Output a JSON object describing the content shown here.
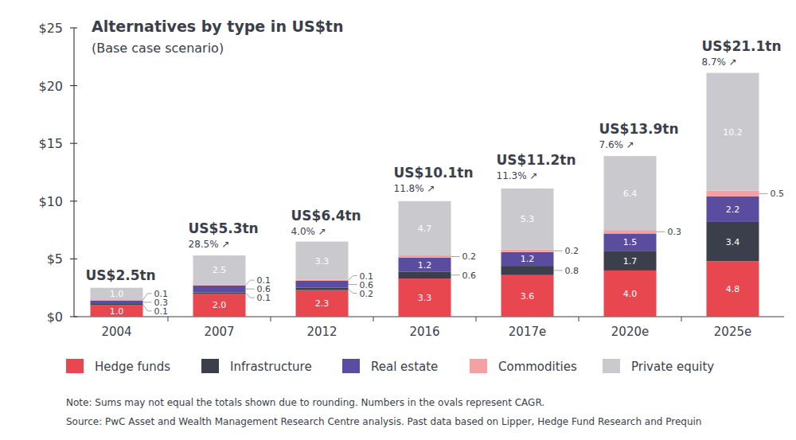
{
  "chart_data": {
    "type": "bar",
    "title": "Alternatives by type in US$tn",
    "subtitle": "(Base case scenario)",
    "stacked": true,
    "data_labels": true,
    "grid": false,
    "legend": "bottom",
    "categories": [
      "2004",
      "2007",
      "2012",
      "2016",
      "2017e",
      "2020e",
      "2025e"
    ],
    "series": [
      {
        "name": "Hedge funds",
        "color": "#e8474f",
        "values": [
          1.0,
          2.0,
          2.3,
          3.3,
          3.6,
          4.0,
          4.8
        ],
        "value_labels": [
          "1.0",
          "2.0",
          "2.3",
          "3.3",
          "3.6",
          "4.0",
          "4.8"
        ]
      },
      {
        "name": "Infrastructure",
        "color": "#3b3f4b",
        "values": [
          0.1,
          0.1,
          0.2,
          0.6,
          0.8,
          1.7,
          3.4
        ],
        "value_labels": [
          "0.1",
          "0.1",
          "0.2",
          "0.6",
          "0.8",
          "1.7",
          "3.4"
        ]
      },
      {
        "name": "Real estate",
        "color": "#5a4d9f",
        "values": [
          0.3,
          0.6,
          0.6,
          1.2,
          1.2,
          1.5,
          2.2
        ],
        "value_labels": [
          "0.3",
          "0.6",
          "0.6",
          "1.2",
          "1.2",
          "1.5",
          "2.2"
        ]
      },
      {
        "name": "Commodities",
        "color": "#f4a1a5",
        "values": [
          0.1,
          0.1,
          0.1,
          0.2,
          0.2,
          0.3,
          0.5
        ],
        "value_labels": [
          "0.1",
          "0.1",
          "0.1",
          "0.2",
          "0.2",
          "0.3",
          "0.5"
        ]
      },
      {
        "name": "Private equity",
        "color": "#c9c9ce",
        "values": [
          1.0,
          2.5,
          3.3,
          4.7,
          5.3,
          6.4,
          10.2
        ],
        "value_labels": [
          "1.0",
          "2.5",
          "3.3",
          "4.7",
          "5.3",
          "6.4",
          "10.2"
        ]
      }
    ],
    "totals": [
      {
        "value": 2.5,
        "label": "US$2.5tn"
      },
      {
        "value": 5.3,
        "label": "US$5.3tn"
      },
      {
        "value": 6.4,
        "label": "US$6.4tn"
      },
      {
        "value": 10.1,
        "label": "US$10.1tn"
      },
      {
        "value": 11.2,
        "label": "US$11.2tn"
      },
      {
        "value": 13.9,
        "label": "US$13.9tn"
      },
      {
        "value": 21.1,
        "label": "US$21.1tn"
      }
    ],
    "cagr": [
      null,
      {
        "value": 28.5,
        "label": "28.5% ↗"
      },
      {
        "value": 4.0,
        "label": "4.0% ↗"
      },
      {
        "value": 11.8,
        "label": "11.8% ↗"
      },
      {
        "value": 11.3,
        "label": "11.3% ↗"
      },
      {
        "value": 7.6,
        "label": "7.6% ↗"
      },
      {
        "value": 8.7,
        "label": "8.7% ↗"
      }
    ],
    "ylim": [
      0,
      25
    ],
    "yticks": [
      {
        "value": 0,
        "label": "$0"
      },
      {
        "value": 5,
        "label": "$5"
      },
      {
        "value": 10,
        "label": "$10"
      },
      {
        "value": 15,
        "label": "$15"
      },
      {
        "value": 20,
        "label": "$20"
      },
      {
        "value": 25,
        "label": "$25"
      }
    ],
    "notes": [
      "Note: Sums may not equal the totals shown due to rounding. Numbers in the ovals represent  CAGR.",
      "Source: PwC Asset and Wealth Management Research Centre analysis. Past data based on Lipper, Hedge Fund Research and Prequin"
    ]
  }
}
